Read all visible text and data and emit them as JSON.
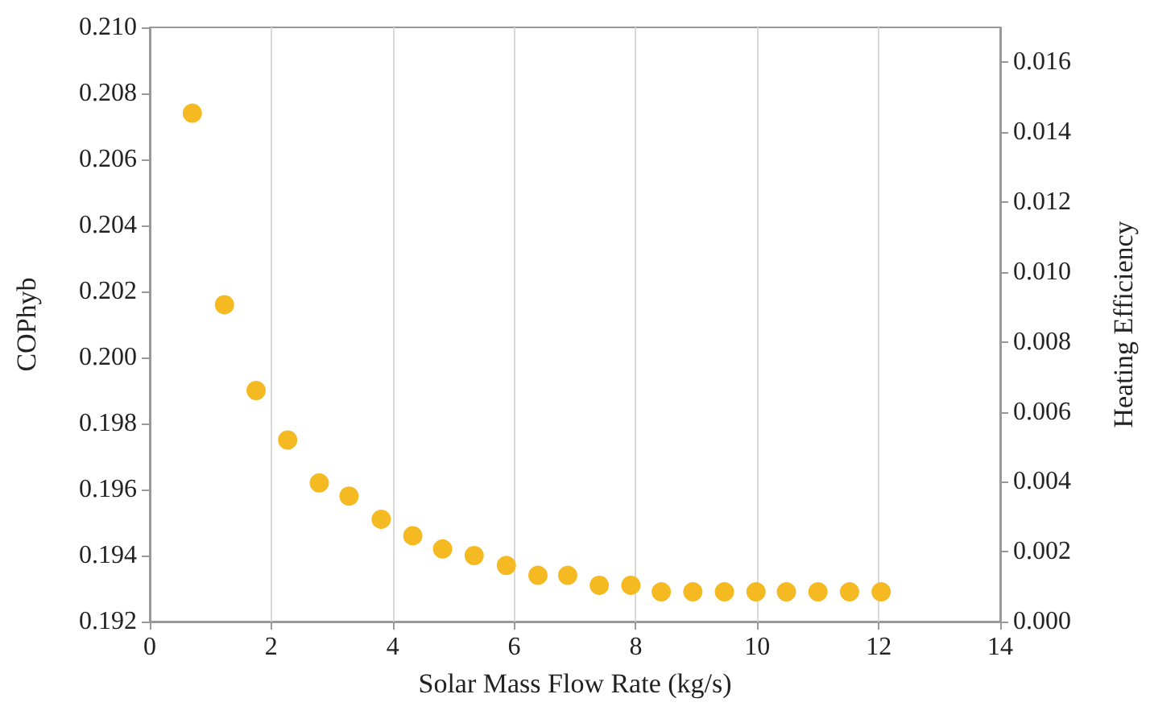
{
  "chart_data": {
    "type": "scatter",
    "xlabel": "Solar Mass Flow Rate (kg/s)",
    "ylabel": "COPhyb",
    "y2label": "Heating Efficiency",
    "x": [
      0.7,
      1.23,
      1.75,
      2.27,
      2.79,
      3.28,
      3.81,
      4.33,
      4.82,
      5.34,
      5.87,
      6.39,
      6.88,
      7.4,
      7.92,
      8.42,
      8.94,
      9.46,
      9.98,
      10.48,
      11.0,
      11.52,
      12.04
    ],
    "series": [
      {
        "color": "#f5b922",
        "values": [
          0.2074,
          0.2016,
          0.199,
          0.1975,
          0.1962,
          0.1958,
          0.1951,
          0.1946,
          0.1942,
          0.194,
          0.1937,
          0.1934,
          0.1934,
          0.1931,
          0.1931,
          0.1929,
          0.1929,
          0.1929,
          0.1929,
          0.1929,
          0.1929,
          0.1929,
          0.1929
        ]
      }
    ],
    "xlim": [
      0,
      14
    ],
    "xticks": [
      0,
      2,
      4,
      6,
      8,
      10,
      12,
      14
    ],
    "ylim": [
      0.192,
      0.21
    ],
    "yticks": [
      {
        "value": 0.192,
        "label": "0.192"
      },
      {
        "value": 0.194,
        "label": "0.194"
      },
      {
        "value": 0.196,
        "label": "0.196"
      },
      {
        "value": 0.198,
        "label": "0.198"
      },
      {
        "value": 0.2,
        "label": "0.200"
      },
      {
        "value": 0.202,
        "label": "0.202"
      },
      {
        "value": 0.204,
        "label": "0.204"
      },
      {
        "value": 0.206,
        "label": "0.206"
      },
      {
        "value": 0.208,
        "label": "0.208"
      },
      {
        "value": 0.21,
        "label": "0.210"
      }
    ],
    "y2lim": [
      0,
      0.017
    ],
    "y2ticks": [
      {
        "value": 0,
        "label": "0.000"
      },
      {
        "value": 0.002,
        "label": "0.002"
      },
      {
        "value": 0.004,
        "label": "0.004"
      },
      {
        "value": 0.006,
        "label": "0.006"
      },
      {
        "value": 0.008,
        "label": "0.008"
      },
      {
        "value": 0.01,
        "label": "0.010"
      },
      {
        "value": 0.012,
        "label": "0.012"
      },
      {
        "value": 0.014,
        "label": "0.014"
      },
      {
        "value": 0.016,
        "label": "0.016"
      }
    ],
    "grid": "x",
    "marker": "circle"
  }
}
